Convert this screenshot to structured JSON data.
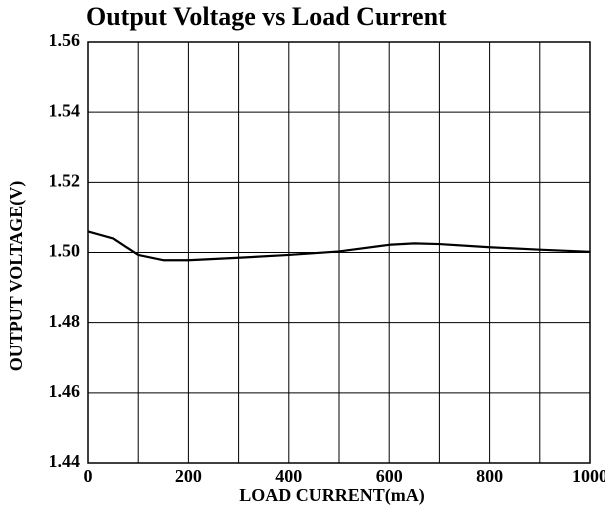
{
  "chart_data": {
    "type": "line",
    "title": "Output Voltage vs Load Current",
    "xlabel": "LOAD CURRENT(mA)",
    "ylabel": "OUTPUT VOLTAGE(V)",
    "x": [
      0,
      50,
      100,
      150,
      200,
      300,
      400,
      500,
      600,
      650,
      700,
      800,
      900,
      1000
    ],
    "series": [
      {
        "color": "#000000",
        "values": [
          1.506,
          1.504,
          1.4993,
          1.4978,
          1.4978,
          1.4985,
          1.4993,
          1.5003,
          1.5022,
          1.5026,
          1.5024,
          1.5015,
          1.5008,
          1.5002
        ]
      }
    ],
    "xlim": [
      0,
      1000
    ],
    "xticks": [
      0,
      200,
      400,
      600,
      800,
      1000
    ],
    "xgrid_ticks": [
      0,
      100,
      200,
      300,
      400,
      500,
      600,
      700,
      800,
      900,
      1000
    ],
    "ylim": [
      1.44,
      1.56
    ],
    "yticks": [
      1.44,
      1.46,
      1.48,
      {
        "value": 1.5,
        "label": "1.50"
      },
      1.52,
      1.54,
      1.56
    ],
    "grid": true
  }
}
